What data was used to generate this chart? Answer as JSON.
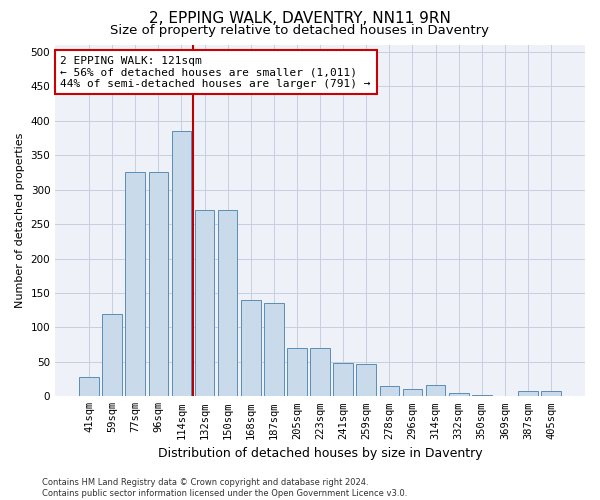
{
  "title": "2, EPPING WALK, DAVENTRY, NN11 9RN",
  "subtitle": "Size of property relative to detached houses in Daventry",
  "xlabel": "Distribution of detached houses by size in Daventry",
  "ylabel": "Number of detached properties",
  "categories": [
    "41sqm",
    "59sqm",
    "77sqm",
    "96sqm",
    "114sqm",
    "132sqm",
    "150sqm",
    "168sqm",
    "187sqm",
    "205sqm",
    "223sqm",
    "241sqm",
    "259sqm",
    "278sqm",
    "296sqm",
    "314sqm",
    "332sqm",
    "350sqm",
    "369sqm",
    "387sqm",
    "405sqm"
  ],
  "values": [
    28,
    120,
    325,
    325,
    385,
    270,
    270,
    140,
    135,
    70,
    70,
    48,
    47,
    15,
    10,
    17,
    5,
    2,
    0,
    8,
    8
  ],
  "bar_color": "#c9daea",
  "bar_edge_color": "#5b8db8",
  "vline_x": 4.5,
  "vline_color": "#bb0000",
  "annotation_text": "2 EPPING WALK: 121sqm\n← 56% of detached houses are smaller (1,011)\n44% of semi-detached houses are larger (791) →",
  "annotation_box_color": "#ffffff",
  "annotation_box_edge": "#cc0000",
  "grid_color": "#c5cfe0",
  "background_color": "#eef2f8",
  "footer": "Contains HM Land Registry data © Crown copyright and database right 2024.\nContains public sector information licensed under the Open Government Licence v3.0.",
  "title_fontsize": 11,
  "subtitle_fontsize": 9.5,
  "ylabel_fontsize": 8,
  "xlabel_fontsize": 9,
  "tick_fontsize": 7.5,
  "ylim": [
    0,
    510
  ],
  "yticks": [
    0,
    50,
    100,
    150,
    200,
    250,
    300,
    350,
    400,
    450,
    500
  ]
}
